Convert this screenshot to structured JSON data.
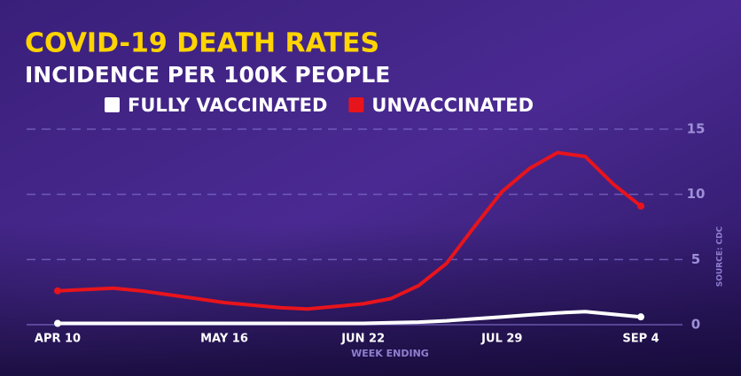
{
  "chart_data": {
    "type": "line",
    "title": "COVID-19 DEATH RATES",
    "subtitle": "INCIDENCE PER 100K PEOPLE",
    "x_label": "WEEK ENDING",
    "source": "SOURCE: CDC",
    "categories": [
      "APR 10",
      null,
      null,
      null,
      null,
      null,
      "MAY 16",
      null,
      null,
      null,
      null,
      "JUN 22",
      null,
      null,
      null,
      null,
      "JUL 29",
      null,
      null,
      null,
      null,
      "SEP 4"
    ],
    "series": [
      {
        "name": "FULLY VACCINATED",
        "color": "#ffffff",
        "values": [
          0.1,
          0.1,
          0.1,
          0.1,
          0.1,
          0.1,
          0.1,
          0.1,
          0.1,
          0.1,
          0.1,
          0.1,
          0.15,
          0.2,
          0.3,
          0.45,
          0.6,
          0.75,
          0.9,
          1.0,
          0.8,
          0.6
        ]
      },
      {
        "name": "UNVACCINATED",
        "color": "#e8141c",
        "values": [
          2.6,
          2.7,
          2.8,
          2.6,
          2.3,
          2.0,
          1.7,
          1.5,
          1.3,
          1.2,
          1.4,
          1.6,
          2.0,
          3.0,
          4.7,
          7.5,
          10.2,
          12.0,
          13.2,
          12.9,
          10.8,
          9.1
        ]
      }
    ],
    "ylim": [
      0,
      15
    ],
    "yticks": [
      0,
      5,
      10,
      15
    ],
    "grid": true
  }
}
